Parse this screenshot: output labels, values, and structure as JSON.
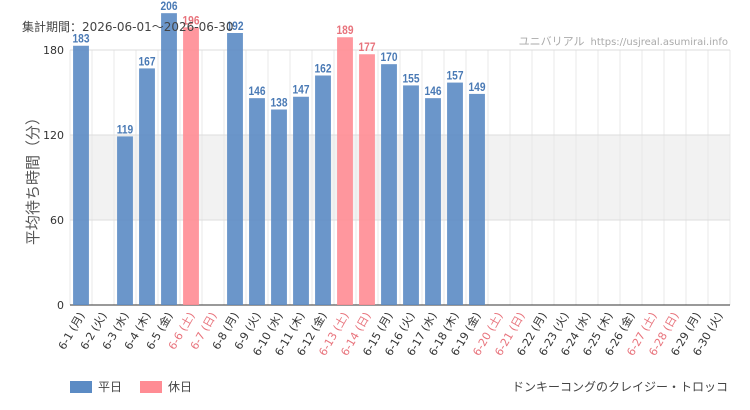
{
  "header": {
    "period": "集計期間：2026-06-01～2026-06-30",
    "site_name": "ユニバリアル",
    "site_url": "https://usjreal.asumirai.info"
  },
  "footer": {
    "attraction": "ドンキーコングのクレイジー・トロッコ"
  },
  "colors": {
    "weekday": "#5b8bc4",
    "holiday": "#ff8c94",
    "holiday_label": "#e8737c"
  },
  "chart_data": {
    "type": "bar",
    "title": "",
    "xlabel": "",
    "ylabel": "平均待ち時間（分）",
    "ylim": [
      0,
      180
    ],
    "yticks": [
      0,
      60,
      120,
      180
    ],
    "grid": true,
    "highlight_band": [
      60,
      120
    ],
    "legend_position": "bottom-left",
    "categories": [
      "6-1 (月)",
      "6-2 (火)",
      "6-3 (水)",
      "6-4 (木)",
      "6-5 (金)",
      "6-6 (土)",
      "6-7 (日)",
      "6-8 (月)",
      "6-9 (火)",
      "6-10 (水)",
      "6-11 (木)",
      "6-12 (金)",
      "6-13 (土)",
      "6-14 (日)",
      "6-15 (月)",
      "6-16 (火)",
      "6-17 (水)",
      "6-18 (木)",
      "6-19 (金)",
      "6-20 (土)",
      "6-21 (日)",
      "6-22 (月)",
      "6-23 (火)",
      "6-24 (水)",
      "6-25 (木)",
      "6-26 (金)",
      "6-27 (土)",
      "6-28 (日)",
      "6-29 (月)",
      "6-30 (火)"
    ],
    "holidays": [
      false,
      false,
      false,
      false,
      false,
      true,
      true,
      false,
      false,
      false,
      false,
      false,
      true,
      true,
      false,
      false,
      false,
      false,
      false,
      true,
      true,
      false,
      false,
      false,
      false,
      false,
      true,
      true,
      false,
      false
    ],
    "values": [
      183,
      null,
      119,
      167,
      206,
      196,
      null,
      192,
      146,
      138,
      147,
      162,
      189,
      177,
      170,
      155,
      146,
      157,
      149,
      null,
      null,
      null,
      null,
      null,
      null,
      null,
      null,
      null,
      null,
      null
    ],
    "series": [
      {
        "name": "平日"
      },
      {
        "name": "休日"
      }
    ]
  }
}
